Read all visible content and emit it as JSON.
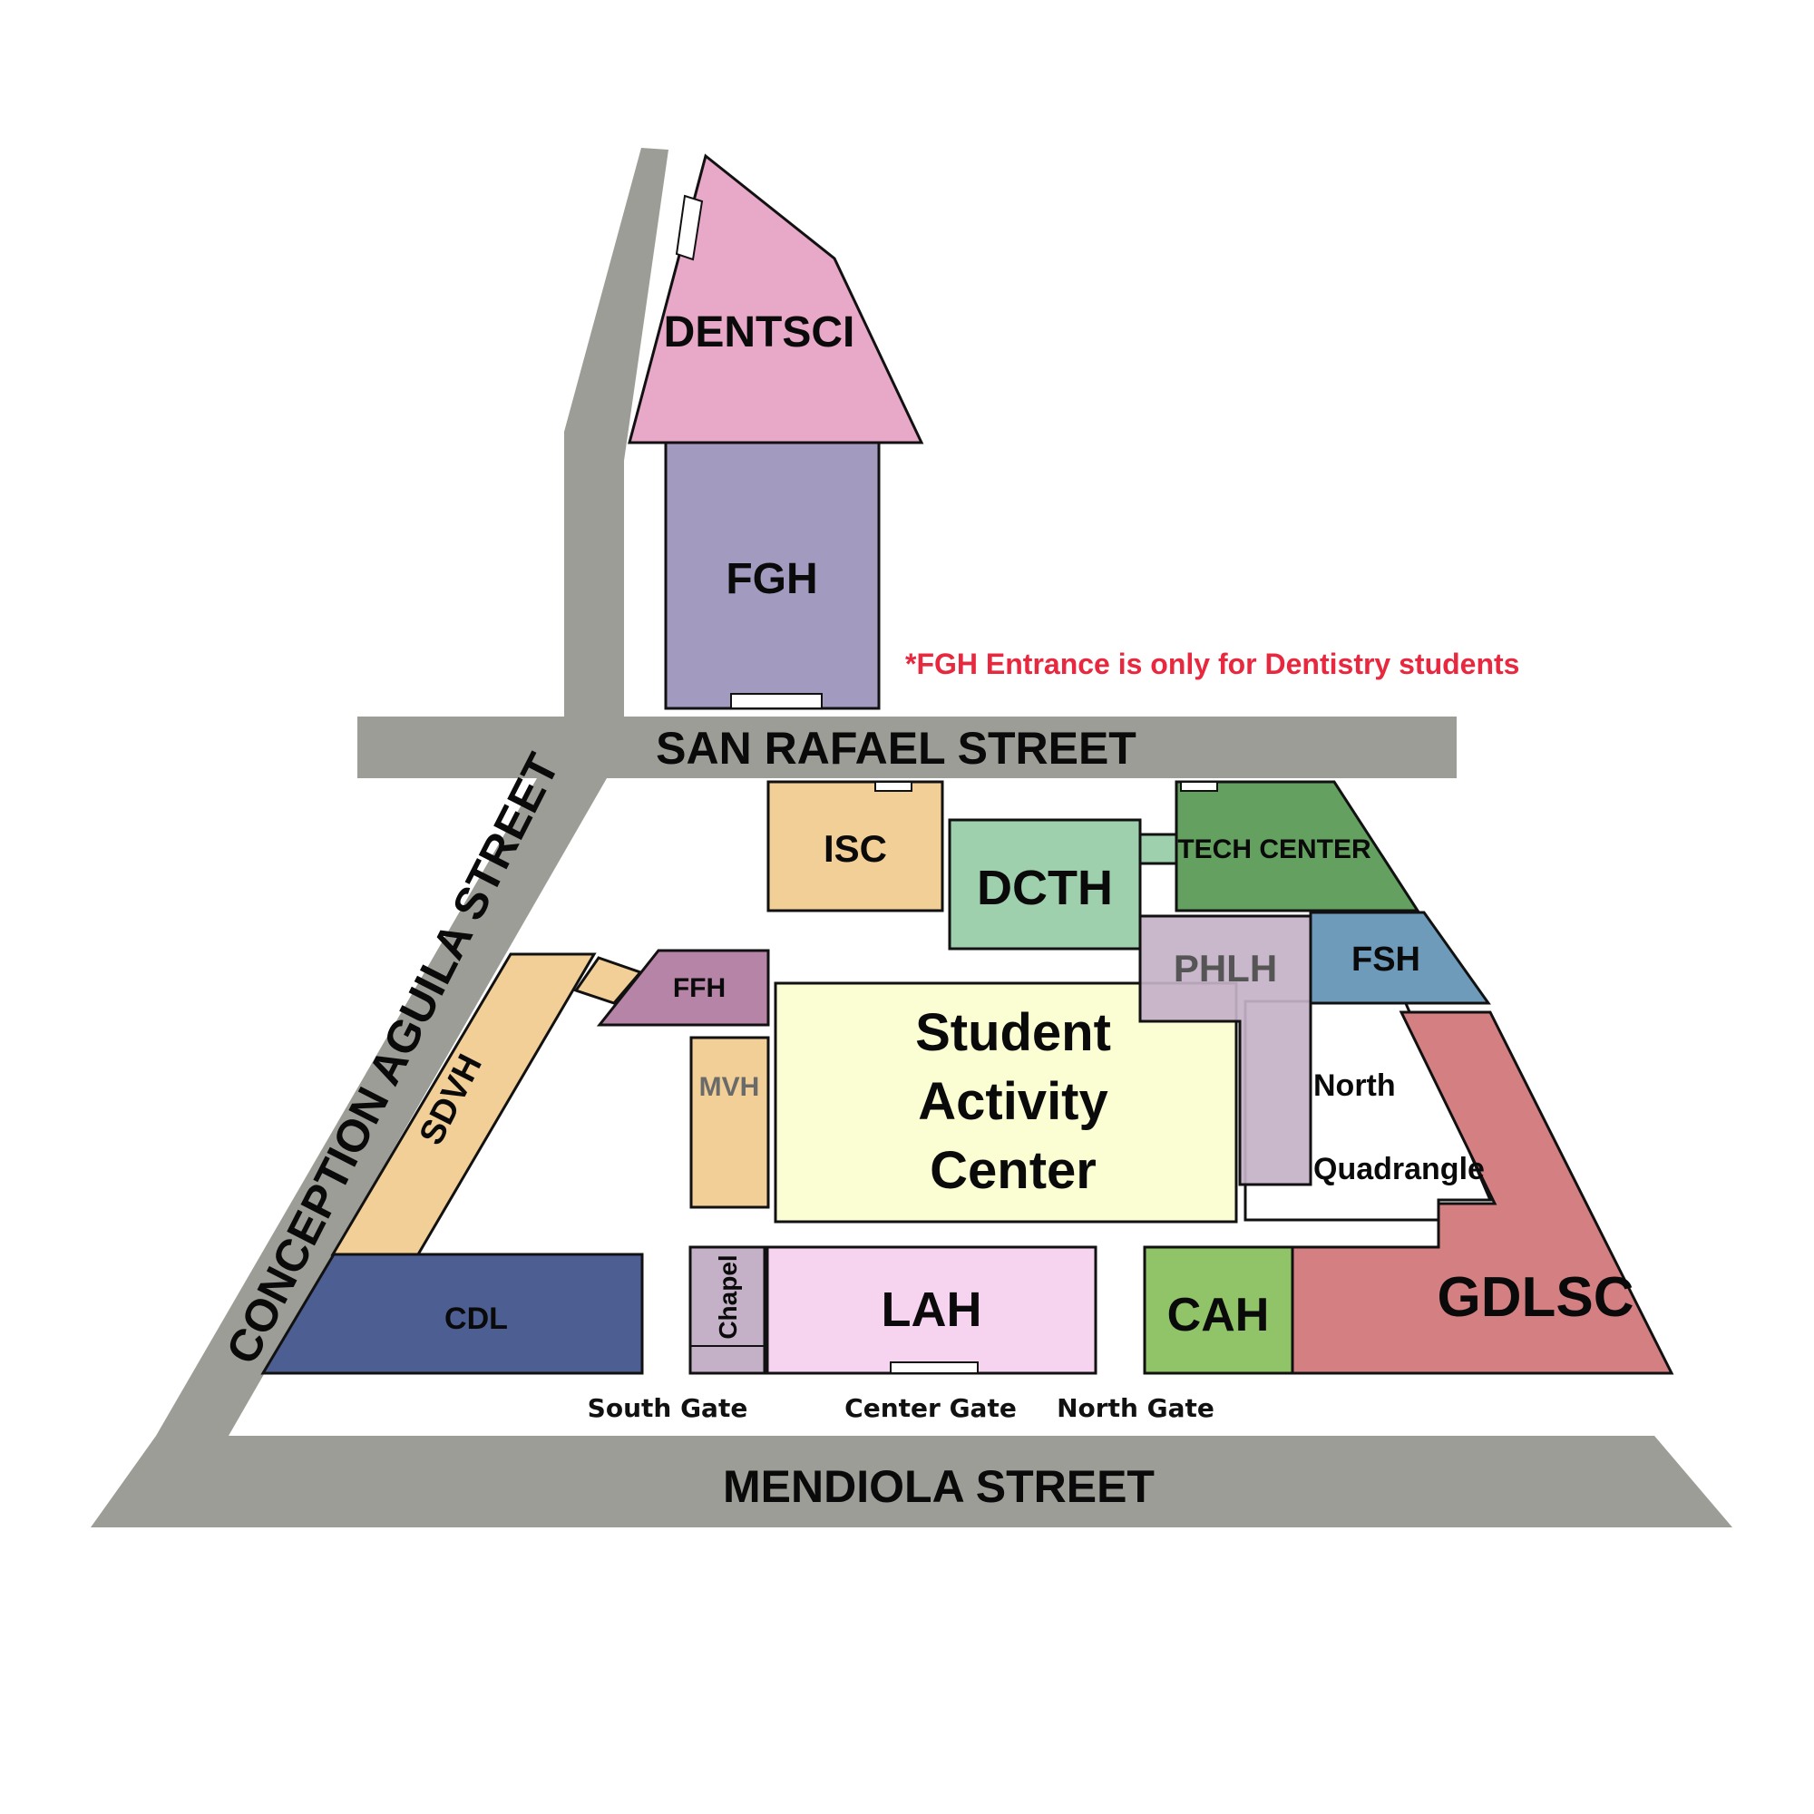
{
  "colors": {
    "road": "#9c9d96",
    "dentsci": "#e8a8c8",
    "fgh": "#a39ac0",
    "isc": "#f2cf97",
    "dcth": "#9fd0ad",
    "tech_center": "#64a060",
    "phlh": "#c4b1c8",
    "fsh": "#6f9bbb",
    "ffh": "#b684a6",
    "sdvh": "#f2cf97",
    "mvh": "#f2cf97",
    "sac": "#fbfdd3",
    "gdlsc": "#d48083",
    "cdl": "#4c5e92",
    "chapel": "#c4b1c8",
    "lah": "#f6d3ef",
    "cah": "#91c468",
    "note": "#e8283f"
  },
  "streets": {
    "san_rafael": "SAN RAFAEL STREET",
    "conception_aguila": "CONCEPTION AGUILA STREET",
    "mendiola": "MENDIOLA STREET"
  },
  "buildings": {
    "dentsci": "DENTSCI",
    "fgh": "FGH",
    "isc": "ISC",
    "dcth": "DCTH",
    "tech_center": "TECH CENTER",
    "phlh": "PHLH",
    "fsh": "FSH",
    "ffh": "FFH",
    "sdvh": "SDVH",
    "mvh": "MVH",
    "sac_line1": "Student",
    "sac_line2": "Activity",
    "sac_line3": "Center",
    "north_quad_line1": "North",
    "north_quad_line2": "Quadrangle",
    "gdlsc": "GDLSC",
    "cdl": "CDL",
    "chapel": "Chapel",
    "lah": "LAH",
    "cah": "CAH"
  },
  "gates": {
    "south": "South Gate",
    "center": "Center Gate",
    "north": "North Gate"
  },
  "note": "*FGH Entrance is only for Dentistry students"
}
